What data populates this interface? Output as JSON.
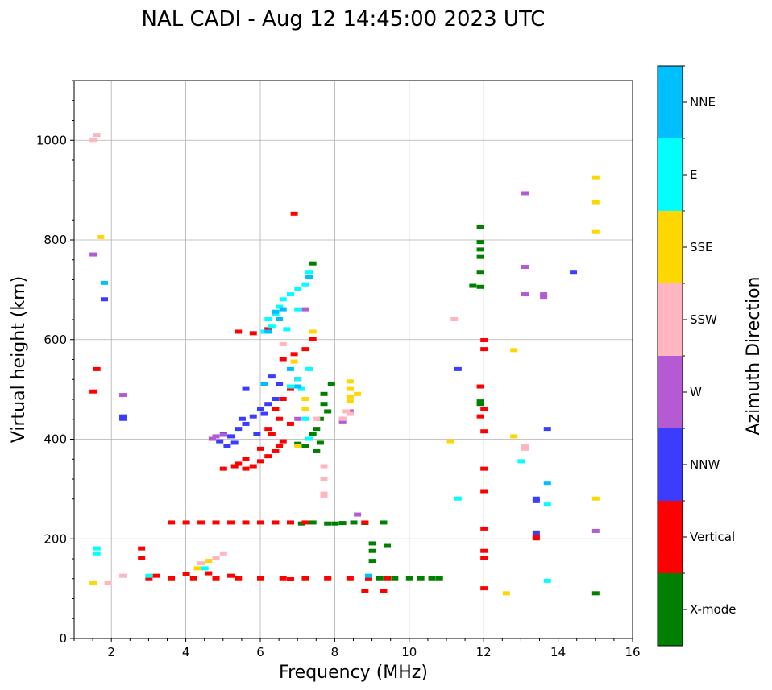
{
  "chart_data": {
    "type": "scatter",
    "title": "NAL CADI - Aug 12 14:45:00 2023 UTC",
    "xlabel": "Frequency (MHz)",
    "ylabel": "Virtual height (km)",
    "xlim": [
      1,
      16
    ],
    "ylim": [
      0,
      1120
    ],
    "xticks": [
      2,
      4,
      6,
      8,
      10,
      12,
      14,
      16
    ],
    "xtick_labels": [
      "2",
      "4",
      "6",
      "8",
      "10",
      "12",
      "14",
      "16"
    ],
    "yticks": [
      0,
      200,
      400,
      600,
      800,
      1000
    ],
    "ytick_labels": [
      "0",
      "200",
      "400",
      "600",
      "800",
      "1000"
    ],
    "grid": true,
    "colorbar": {
      "label": "Azimuth Direction",
      "categories": [
        {
          "name": "X-mode",
          "color": "#008000"
        },
        {
          "name": "Vertical",
          "color": "#ff0000"
        },
        {
          "name": "NNW",
          "color": "#3c3cff"
        },
        {
          "name": "W",
          "color": "#b45ad2"
        },
        {
          "name": "SSW",
          "color": "#ffb6c1"
        },
        {
          "name": "SSE",
          "color": "#ffd700"
        },
        {
          "name": "E",
          "color": "#00ffff"
        },
        {
          "name": "NNE",
          "color": "#00bfff"
        }
      ]
    },
    "series": [
      {
        "name": "X-mode",
        "points": [
          [
            7.5,
            375
          ],
          [
            7.6,
            392
          ],
          [
            7.5,
            420
          ],
          [
            7.6,
            440
          ],
          [
            7.7,
            470
          ],
          [
            7.3,
            400
          ],
          [
            7.4,
            410
          ],
          [
            7.2,
            385
          ],
          [
            7.0,
            390
          ],
          [
            7.8,
            455
          ],
          [
            7.9,
            510
          ],
          [
            7.7,
            490
          ],
          [
            7.1,
            230
          ],
          [
            7.4,
            232
          ],
          [
            7.8,
            230
          ],
          [
            8.2,
            231
          ],
          [
            8.5,
            232
          ],
          [
            8.8,
            231
          ],
          [
            9.3,
            232
          ],
          [
            9.0,
            175
          ],
          [
            9.0,
            190
          ],
          [
            9.4,
            185
          ],
          [
            9.0,
            155
          ],
          [
            8.9,
            120
          ],
          [
            9.2,
            120
          ],
          [
            9.6,
            120
          ],
          [
            10.0,
            120
          ],
          [
            10.3,
            120
          ],
          [
            10.6,
            120
          ],
          [
            10.8,
            120
          ],
          [
            11.9,
            825
          ],
          [
            11.9,
            795
          ],
          [
            11.9,
            780
          ],
          [
            11.9,
            765
          ],
          [
            11.7,
            707
          ],
          [
            11.9,
            705
          ],
          [
            11.9,
            735
          ],
          [
            11.9,
            475
          ],
          [
            11.9,
            470
          ],
          [
            15.0,
            90
          ],
          [
            7.4,
            752
          ],
          [
            8.0,
            230
          ]
        ]
      },
      {
        "name": "Vertical",
        "points": [
          [
            5.6,
            340
          ],
          [
            5.8,
            345
          ],
          [
            6.0,
            355
          ],
          [
            6.2,
            365
          ],
          [
            6.4,
            375
          ],
          [
            6.5,
            385
          ],
          [
            6.6,
            395
          ],
          [
            6.3,
            410
          ],
          [
            6.2,
            420
          ],
          [
            6.5,
            440
          ],
          [
            6.4,
            460
          ],
          [
            6.6,
            480
          ],
          [
            6.8,
            500
          ],
          [
            7.0,
            520
          ],
          [
            7.2,
            580
          ],
          [
            7.4,
            600
          ],
          [
            6.6,
            560
          ],
          [
            6.9,
            570
          ],
          [
            5.0,
            340
          ],
          [
            5.3,
            345
          ],
          [
            5.4,
            350
          ],
          [
            5.6,
            360
          ],
          [
            6.0,
            380
          ],
          [
            6.8,
            430
          ],
          [
            3.6,
            232
          ],
          [
            4.0,
            232
          ],
          [
            4.4,
            232
          ],
          [
            4.8,
            232
          ],
          [
            5.2,
            232
          ],
          [
            5.6,
            232
          ],
          [
            6.0,
            232
          ],
          [
            6.4,
            232
          ],
          [
            6.8,
            232
          ],
          [
            7.2,
            232
          ],
          [
            8.8,
            232
          ],
          [
            3.0,
            120
          ],
          [
            3.6,
            120
          ],
          [
            4.2,
            120
          ],
          [
            4.8,
            120
          ],
          [
            5.4,
            120
          ],
          [
            6.0,
            120
          ],
          [
            6.6,
            120
          ],
          [
            7.2,
            120
          ],
          [
            7.8,
            120
          ],
          [
            8.4,
            120
          ],
          [
            8.9,
            120
          ],
          [
            9.4,
            120
          ],
          [
            3.2,
            125
          ],
          [
            4.0,
            128
          ],
          [
            4.6,
            130
          ],
          [
            5.2,
            125
          ],
          [
            6.8,
            118
          ],
          [
            2.8,
            180
          ],
          [
            2.8,
            160
          ],
          [
            12.0,
            598
          ],
          [
            12.0,
            580
          ],
          [
            12.0,
            460
          ],
          [
            12.0,
            415
          ],
          [
            12.0,
            340
          ],
          [
            12.0,
            295
          ],
          [
            12.0,
            220
          ],
          [
            12.0,
            175
          ],
          [
            12.0,
            160
          ],
          [
            12.0,
            100
          ],
          [
            11.9,
            505
          ],
          [
            11.9,
            445
          ],
          [
            13.4,
            205
          ],
          [
            13.4,
            200
          ],
          [
            6.9,
            852
          ],
          [
            1.5,
            495
          ],
          [
            1.6,
            540
          ],
          [
            8.8,
            95
          ],
          [
            9.3,
            95
          ],
          [
            5.4,
            615
          ],
          [
            5.8,
            612
          ],
          [
            6.2,
            620
          ]
        ]
      },
      {
        "name": "NNW",
        "points": [
          [
            4.7,
            400
          ],
          [
            4.9,
            395
          ],
          [
            5.0,
            410
          ],
          [
            5.2,
            405
          ],
          [
            5.4,
            420
          ],
          [
            5.6,
            430
          ],
          [
            5.8,
            445
          ],
          [
            6.0,
            460
          ],
          [
            6.2,
            470
          ],
          [
            6.4,
            480
          ],
          [
            6.1,
            450
          ],
          [
            5.1,
            385
          ],
          [
            5.3,
            392
          ],
          [
            5.5,
            440
          ],
          [
            6.5,
            510
          ],
          [
            5.9,
            410
          ],
          [
            2.3,
            445
          ],
          [
            2.3,
            440
          ],
          [
            11.3,
            540
          ],
          [
            13.4,
            280
          ],
          [
            13.4,
            275
          ],
          [
            13.7,
            420
          ],
          [
            14.4,
            735
          ],
          [
            5.6,
            500
          ],
          [
            6.3,
            525
          ],
          [
            13.4,
            212
          ],
          [
            1.8,
            680
          ]
        ]
      },
      {
        "name": "W",
        "points": [
          [
            4.7,
            400
          ],
          [
            4.8,
            405
          ],
          [
            5.0,
            408
          ],
          [
            8.2,
            440
          ],
          [
            8.2,
            435
          ],
          [
            8.4,
            455
          ],
          [
            8.6,
            248
          ],
          [
            13.1,
            893
          ],
          [
            13.1,
            745
          ],
          [
            13.1,
            690
          ],
          [
            13.6,
            690
          ],
          [
            13.6,
            685
          ],
          [
            15.0,
            215
          ],
          [
            2.3,
            488
          ],
          [
            1.5,
            770
          ],
          [
            7.2,
            660
          ],
          [
            7.0,
            440
          ]
        ]
      },
      {
        "name": "SSW",
        "points": [
          [
            8.3,
            455
          ],
          [
            8.4,
            450
          ],
          [
            13.1,
            385
          ],
          [
            13.1,
            380
          ],
          [
            11.2,
            640
          ],
          [
            7.7,
            345
          ],
          [
            7.7,
            320
          ],
          [
            7.7,
            290
          ],
          [
            7.7,
            285
          ],
          [
            7.5,
            440
          ],
          [
            4.8,
            160
          ],
          [
            5.0,
            170
          ],
          [
            4.4,
            150
          ],
          [
            2.3,
            125
          ],
          [
            1.6,
            1010
          ],
          [
            1.5,
            1000
          ],
          [
            8.2,
            440
          ],
          [
            1.9,
            110
          ],
          [
            6.6,
            590
          ]
        ]
      },
      {
        "name": "SSE",
        "points": [
          [
            8.4,
            515
          ],
          [
            8.4,
            500
          ],
          [
            8.4,
            485
          ],
          [
            8.4,
            475
          ],
          [
            8.6,
            490
          ],
          [
            7.4,
            615
          ],
          [
            7.2,
            480
          ],
          [
            6.9,
            555
          ],
          [
            7.2,
            460
          ],
          [
            12.8,
            578
          ],
          [
            12.8,
            405
          ],
          [
            12.6,
            90
          ],
          [
            11.1,
            395
          ],
          [
            15.0,
            925
          ],
          [
            15.0,
            875
          ],
          [
            15.0,
            815
          ],
          [
            15.0,
            280
          ],
          [
            4.3,
            140
          ],
          [
            4.6,
            155
          ],
          [
            1.5,
            110
          ],
          [
            1.7,
            805
          ],
          [
            7.0,
            385
          ]
        ]
      },
      {
        "name": "E",
        "points": [
          [
            6.4,
            650
          ],
          [
            6.5,
            665
          ],
          [
            6.6,
            680
          ],
          [
            6.8,
            690
          ],
          [
            7.0,
            700
          ],
          [
            7.2,
            710
          ],
          [
            6.1,
            615
          ],
          [
            6.3,
            625
          ],
          [
            6.2,
            640
          ],
          [
            6.7,
            620
          ],
          [
            7.0,
            660
          ],
          [
            7.3,
            735
          ],
          [
            6.8,
            505
          ],
          [
            7.0,
            520
          ],
          [
            7.3,
            540
          ],
          [
            7.1,
            500
          ],
          [
            7.3,
            400
          ],
          [
            7.2,
            440
          ],
          [
            13.0,
            355
          ],
          [
            11.3,
            280
          ],
          [
            13.7,
            268
          ],
          [
            13.7,
            115
          ],
          [
            1.6,
            180
          ],
          [
            1.6,
            170
          ],
          [
            3.0,
            125
          ],
          [
            4.5,
            140
          ]
        ]
      },
      {
        "name": "NNE",
        "points": [
          [
            6.2,
            615
          ],
          [
            6.4,
            655
          ],
          [
            6.5,
            640
          ],
          [
            6.6,
            660
          ],
          [
            7.3,
            725
          ],
          [
            6.1,
            510
          ],
          [
            6.8,
            540
          ],
          [
            8.9,
            125
          ],
          [
            13.7,
            310
          ],
          [
            1.8,
            713
          ],
          [
            7.0,
            505
          ]
        ]
      }
    ]
  }
}
